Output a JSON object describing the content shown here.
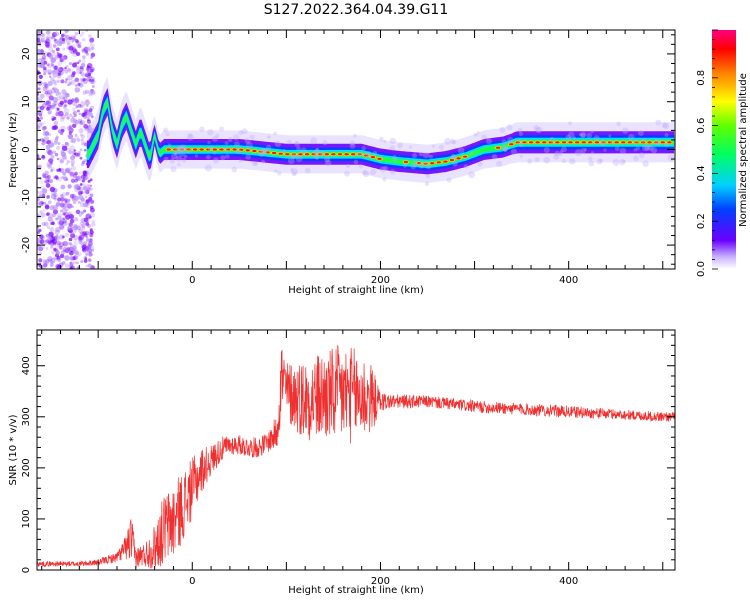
{
  "figure": {
    "title": "S127.2022.364.04.39.G11"
  },
  "chart_data": [
    {
      "type": "heatmap",
      "title": "S127.2022.364.04.39.G11",
      "xlabel": "Height of straight line (km)",
      "ylabel": "Frequency (Hz)",
      "xlim": [
        -165,
        513
      ],
      "ylim": [
        -25,
        25
      ],
      "xticks": [
        0,
        200,
        400
      ],
      "yticks": [
        -20,
        -10,
        0,
        10,
        20
      ],
      "colorbar": {
        "label": "Normalized spectral amplitude",
        "range": [
          0,
          1
        ],
        "ticks": [
          0.0,
          0.2,
          0.4,
          0.6,
          0.8
        ]
      },
      "ridge": {
        "description": "frequency of maximum spectral amplitude vs height",
        "x": [
          -110,
          -100,
          -95,
          -90,
          -85,
          -80,
          -75,
          -70,
          -65,
          -60,
          -55,
          -50,
          -45,
          -40,
          -35,
          -30,
          -20,
          0,
          50,
          100,
          150,
          180,
          200,
          220,
          250,
          270,
          290,
          310,
          330,
          345,
          360,
          400,
          450,
          500,
          513
        ],
        "y": [
          -1,
          3,
          8,
          10,
          4,
          1,
          5,
          7,
          4,
          1,
          4,
          1,
          -2,
          3,
          -1,
          0,
          0,
          0,
          0,
          -1,
          -1,
          -1,
          -2,
          -2.5,
          -3,
          -2.5,
          -1.5,
          0,
          0.5,
          1.5,
          1.5,
          1.5,
          1.5,
          1.5,
          1.5
        ]
      },
      "grid": false,
      "legend": "colorbar right"
    },
    {
      "type": "line",
      "xlabel": "Height of straight line (km)",
      "ylabel": "SNR (10 * v/v)",
      "xlim": [
        -165,
        513
      ],
      "ylim": [
        0,
        470
      ],
      "xticks": [
        0,
        200,
        400
      ],
      "yticks": [
        0,
        100,
        200,
        300,
        400
      ],
      "color": "#f03030",
      "series": [
        {
          "envelope_x": [
            -165,
            -120,
            -100,
            -80,
            -70,
            -65,
            -60,
            -50,
            -40,
            -30,
            -20,
            -10,
            0,
            10,
            20,
            30,
            40,
            50,
            60,
            70,
            80,
            90,
            93,
            95,
            100,
            110,
            120,
            140,
            160,
            180,
            190,
            200,
            210,
            250,
            300,
            350,
            400,
            450,
            500,
            513
          ],
          "center": [
            12,
            12,
            15,
            25,
            45,
            60,
            25,
            30,
            45,
            80,
            95,
            125,
            160,
            195,
            215,
            235,
            245,
            245,
            240,
            240,
            250,
            270,
            350,
            380,
            350,
            340,
            335,
            340,
            345,
            340,
            335,
            330,
            330,
            330,
            320,
            315,
            310,
            305,
            300,
            300
          ],
          "spread": [
            5,
            5,
            6,
            10,
            25,
            50,
            20,
            25,
            45,
            70,
            75,
            70,
            60,
            45,
            30,
            25,
            20,
            20,
            20,
            20,
            20,
            35,
            80,
            80,
            60,
            70,
            80,
            90,
            100,
            90,
            70,
            20,
            15,
            12,
            12,
            12,
            12,
            10,
            10,
            10
          ]
        }
      ],
      "grid": false
    }
  ]
}
